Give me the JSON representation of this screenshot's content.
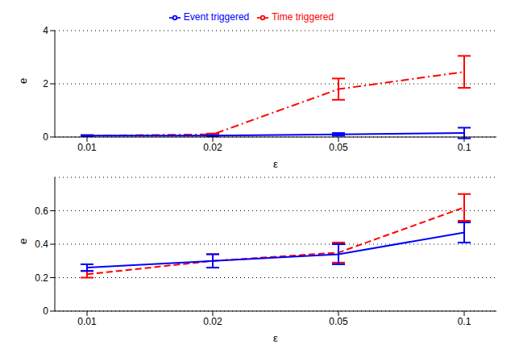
{
  "chart_data": [
    {
      "type": "line",
      "categories": [
        "0.01",
        "0.02",
        "0.05",
        "0.1"
      ],
      "x_label": "ε",
      "y_label": "e",
      "ylim": [
        0,
        4
      ],
      "yticks": [
        0,
        2,
        4
      ],
      "grid": true,
      "legend": "top",
      "series": [
        {
          "name": "Time triggered",
          "color": "#ff0000",
          "line_style": "dashdot",
          "values": [
            0.05,
            0.1,
            1.8,
            2.45
          ],
          "errors": [
            0.02,
            0.03,
            0.4,
            0.6
          ]
        },
        {
          "name": "Event triggered",
          "color": "#0000ff",
          "line_style": "solid",
          "values": [
            0.05,
            0.05,
            0.1,
            0.15
          ],
          "errors": [
            0.02,
            0.02,
            0.05,
            0.2
          ]
        }
      ]
    },
    {
      "type": "line",
      "categories": [
        "0.01",
        "0.02",
        "0.05",
        "0.1"
      ],
      "x_label": "ε",
      "y_label": "e",
      "ylim": [
        0,
        0.8
      ],
      "yticks": [
        0,
        0.2,
        0.4,
        0.6
      ],
      "grid": true,
      "series": [
        {
          "name": "Time triggered",
          "color": "#ff0000",
          "line_style": "dashed",
          "values": [
            0.22,
            0.3,
            0.35,
            0.62
          ],
          "errors": [
            0.02,
            0.04,
            0.06,
            0.08
          ]
        },
        {
          "name": "Event triggered",
          "color": "#0000ff",
          "line_style": "solid",
          "values": [
            0.26,
            0.3,
            0.34,
            0.47
          ],
          "errors": [
            0.02,
            0.04,
            0.06,
            0.06
          ]
        }
      ]
    }
  ]
}
